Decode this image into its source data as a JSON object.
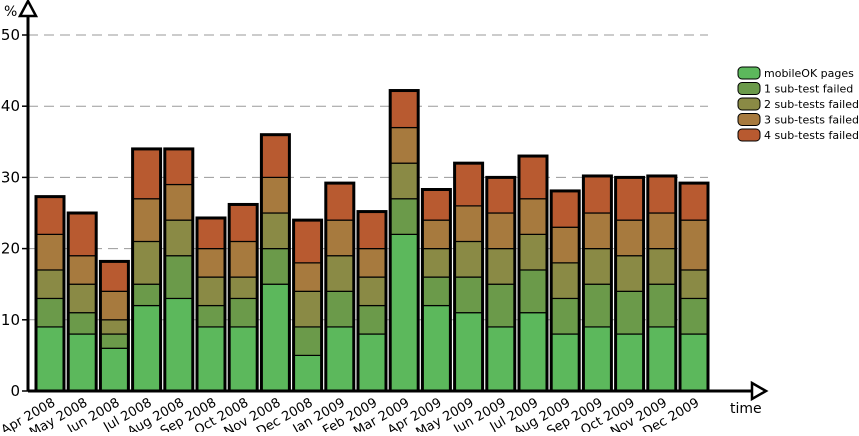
{
  "chart_data": {
    "type": "bar",
    "stacked": true,
    "title": "",
    "xlabel": "time",
    "ylabel": "%",
    "ylim": [
      0,
      50
    ],
    "yticks": [
      0,
      10,
      20,
      30,
      40,
      50
    ],
    "grid": "horizontal dashed",
    "legend_position": "right",
    "categories": [
      "Apr 2008",
      "May 2008",
      "Jun 2008",
      "Jul 2008",
      "Aug 2008",
      "Sep 2008",
      "Oct 2008",
      "Nov 2008",
      "Dec 2008",
      "Jan 2009",
      "Feb 2009",
      "Mar 2009",
      "Apr 2009",
      "May 2009",
      "Jun 2009",
      "Jul 2009",
      "Aug 2009",
      "Sep 2009",
      "Oct 2009",
      "Nov 2009",
      "Dec 2009"
    ],
    "series": [
      {
        "name": "mobileOK pages",
        "color": "#5cb85c",
        "values": [
          9,
          8,
          6,
          12,
          13,
          9,
          9,
          15,
          5,
          9,
          8,
          22,
          12,
          11,
          9,
          11,
          8,
          9,
          8,
          9,
          8
        ]
      },
      {
        "name": "1 sub-test failed",
        "color": "#6b9a4a",
        "values": [
          4,
          3,
          2,
          3,
          6,
          3,
          4,
          5,
          4,
          5,
          4,
          5,
          4,
          5,
          6,
          6,
          5,
          6,
          6,
          6,
          5
        ]
      },
      {
        "name": "2 sub-tests failed",
        "color": "#8a8a45",
        "values": [
          4,
          4,
          2,
          6,
          5,
          4,
          3,
          5,
          5,
          5,
          4,
          5,
          4,
          5,
          5,
          5,
          5,
          5,
          5,
          5,
          4
        ]
      },
      {
        "name": "3 sub-tests failed",
        "color": "#a77a3e",
        "values": [
          5,
          4,
          4,
          6,
          5,
          4,
          5,
          5,
          4,
          5,
          4,
          5,
          4,
          5,
          5,
          5,
          5,
          5,
          5,
          5,
          7
        ]
      },
      {
        "name": "4 sub-tests failed",
        "color": "#b85a30",
        "values": [
          5.3,
          6,
          4.2,
          7,
          5,
          4.3,
          5.2,
          6,
          6,
          5.2,
          5.2,
          5.2,
          4.3,
          6,
          5,
          6,
          5.1,
          5.2,
          6,
          5.2,
          5.2
        ]
      }
    ]
  }
}
